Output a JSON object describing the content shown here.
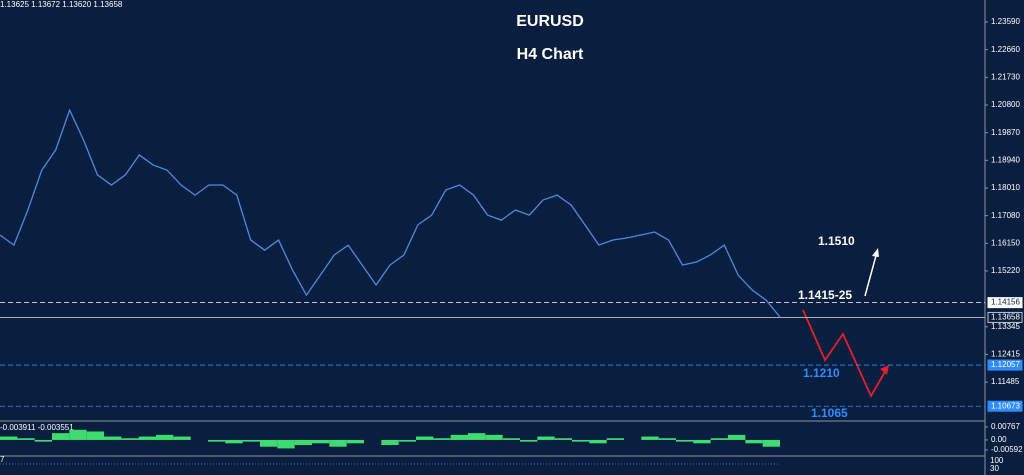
{
  "chart_data": {
    "type": "line",
    "title": "EURUSD",
    "subtitle": "H4 Chart",
    "ohlc_label": "1.13625 1.13672 1.13620 1.13658",
    "categories": [
      null,
      null,
      null,
      null,
      null,
      null,
      null,
      null,
      null,
      null,
      null,
      null,
      null,
      null,
      null,
      null,
      null,
      null,
      null,
      null,
      null,
      null,
      null,
      null,
      null,
      null,
      null,
      null,
      null,
      null,
      null,
      null,
      null,
      null,
      null,
      null,
      null,
      null,
      null,
      null,
      null,
      null,
      null,
      null,
      null,
      null,
      null,
      null,
      null,
      null,
      null,
      null,
      null,
      null,
      null,
      null,
      null
    ],
    "series": [
      {
        "color": "#4a8be0",
        "values": [
          1.1643,
          1.1609,
          1.1727,
          1.1861,
          1.1929,
          1.2063,
          1.1962,
          1.1845,
          1.1811,
          1.1845,
          1.1912,
          1.1878,
          1.1861,
          1.1811,
          1.1777,
          1.1811,
          1.1811,
          1.1777,
          1.1626,
          1.1592,
          1.1626,
          1.1525,
          1.1441,
          1.1508,
          1.1576,
          1.1609,
          1.1542,
          1.1475,
          1.1542,
          1.1576,
          1.1677,
          1.171,
          1.1794,
          1.1811,
          1.1777,
          1.171,
          1.1693,
          1.1727,
          1.171,
          1.1761,
          1.1777,
          1.1744,
          1.1677,
          1.1609,
          1.1626,
          1.1633,
          1.1643,
          1.1653,
          1.1626,
          1.1542,
          1.1552,
          1.1576,
          1.1609,
          1.1508,
          1.1458,
          1.1424,
          1.1367
        ]
      }
    ],
    "ylim": [
      1.1021,
      1.2433
    ],
    "yticks": [
      {
        "value": 1.2359,
        "label": "1.23590"
      },
      {
        "value": 1.2266,
        "label": "1.22660"
      },
      {
        "value": 1.2173,
        "label": "1.21730"
      },
      {
        "value": 1.208,
        "label": "1.20800"
      },
      {
        "value": 1.1987,
        "label": "1.19870"
      },
      {
        "value": 1.1894,
        "label": "1.18940"
      },
      {
        "value": 1.1801,
        "label": "1.18010"
      },
      {
        "value": 1.1708,
        "label": "1.17080"
      },
      {
        "value": 1.1615,
        "label": "1.16150"
      },
      {
        "value": 1.1522,
        "label": "1.15220"
      },
      {
        "value": 1.13345,
        "label": "1.13345"
      },
      {
        "value": 1.12415,
        "label": "1.12415"
      },
      {
        "value": 1.11485,
        "label": "1.11485"
      }
    ],
    "levels": [
      {
        "value": 1.14156,
        "label": "1.14156",
        "color": "#ffffff"
      },
      {
        "value": 1.13658,
        "label": "1.13658",
        "color": "#c0c4cc"
      },
      {
        "value": 1.12057,
        "label": "1.12057",
        "color": "#2f8cff"
      },
      {
        "value": 1.10673,
        "label": "1.10673",
        "color": "#2f8cff"
      }
    ],
    "annotations": [
      "1.1510",
      "1.1415-25",
      "1.1210",
      "1.1065"
    ],
    "indicator": {
      "label": "-0.003911 -0.003551",
      "color": "#3ddc6e",
      "values": [
        0.002,
        0.001,
        -0.001,
        0.004,
        0.006,
        0.005,
        0.002,
        0.001,
        0.002,
        0.003,
        0.002,
        0.0,
        -0.001,
        -0.002,
        -0.001,
        -0.004,
        -0.005,
        -0.003,
        -0.002,
        -0.004,
        -0.002,
        0.0,
        -0.003,
        -0.001,
        0.002,
        0.001,
        0.003,
        0.004,
        0.003,
        0.001,
        -0.001,
        0.002,
        0.001,
        -0.001,
        -0.002,
        0.001,
        0.0,
        0.002,
        0.001,
        -0.001,
        -0.002,
        0.001,
        0.003,
        -0.002,
        -0.004
      ],
      "ylim": [
        -0.0089,
        0.0106
      ],
      "yticks": [
        0.00767,
        {
          "value": 0,
          "label": "0.00"
        },
        -0.00592
      ]
    },
    "lower_labels": [
      "7",
      "100",
      "30"
    ]
  }
}
